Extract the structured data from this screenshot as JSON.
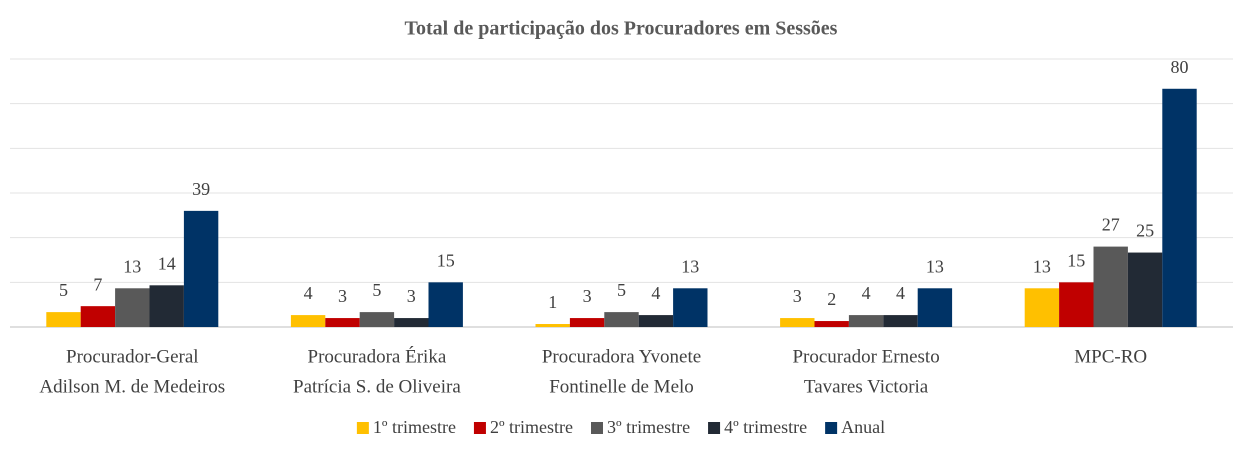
{
  "chart_data": {
    "type": "bar",
    "title": "Total de participação dos Procuradores  em Sessões",
    "categories": [
      [
        "Procurador-Geral",
        "Adilson M. de Medeiros"
      ],
      [
        "Procuradora Érika",
        "Patrícia S. de Oliveira"
      ],
      [
        "Procuradora Yvonete",
        "Fontinelle de Melo"
      ],
      [
        "Procurador Ernesto",
        "Tavares Victoria"
      ],
      [
        "MPC-RO"
      ]
    ],
    "series": [
      {
        "name": "1º trimestre",
        "color": "#ffc000",
        "values": [
          5,
          4,
          1,
          3,
          13
        ]
      },
      {
        "name": "2º trimestre",
        "color": "#c00000",
        "values": [
          7,
          3,
          3,
          2,
          15
        ]
      },
      {
        "name": "3º trimestre",
        "color": "#595959",
        "values": [
          13,
          5,
          5,
          4,
          27
        ]
      },
      {
        "name": "4º trimestre",
        "color": "#222a35",
        "values": [
          14,
          3,
          4,
          4,
          25
        ]
      },
      {
        "name": "Anual",
        "color": "#003366",
        "values": [
          39,
          15,
          13,
          13,
          80
        ]
      }
    ],
    "ylim": [
      0,
      90
    ],
    "yticks": [
      0,
      15,
      30,
      45,
      60,
      75,
      90
    ],
    "grid": true,
    "legend": "bottom"
  }
}
